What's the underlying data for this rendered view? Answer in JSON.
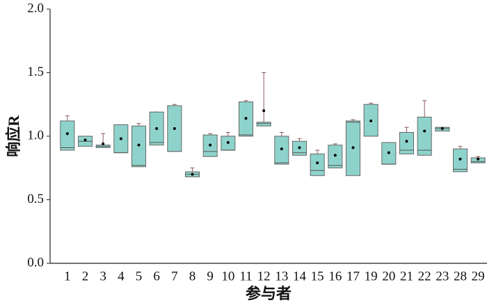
{
  "chart_data": {
    "type": "box",
    "xlabel": "参与者",
    "ylabel": "响应R",
    "categories": [
      "1",
      "2",
      "3",
      "4",
      "5",
      "6",
      "7",
      "8",
      "9",
      "10",
      "11",
      "12",
      "13",
      "14",
      "15",
      "16",
      "17",
      "19",
      "20",
      "21",
      "22",
      "23",
      "28",
      "29"
    ],
    "color": "#8ed3cb",
    "boxes": [
      {
        "min": 0.89,
        "q1": 0.89,
        "median": 0.91,
        "q3": 1.12,
        "max": 1.16,
        "mean": 1.02
      },
      {
        "min": 0.92,
        "q1": 0.92,
        "median": 0.96,
        "q3": 1.0,
        "max": 1.0,
        "mean": 0.97
      },
      {
        "min": 0.91,
        "q1": 0.91,
        "median": 0.92,
        "q3": 0.93,
        "max": 1.02,
        "mean": 0.94
      },
      {
        "min": 0.87,
        "q1": 0.87,
        "median": 0.87,
        "q3": 1.09,
        "max": 1.09,
        "mean": 0.98
      },
      {
        "min": 0.76,
        "q1": 0.76,
        "median": 0.77,
        "q3": 1.08,
        "max": 1.1,
        "mean": 0.93
      },
      {
        "min": 0.93,
        "q1": 0.93,
        "median": 0.95,
        "q3": 1.19,
        "max": 1.19,
        "mean": 1.06
      },
      {
        "min": 0.88,
        "q1": 0.88,
        "median": 0.88,
        "q3": 1.24,
        "max": 1.25,
        "mean": 1.06
      },
      {
        "min": 0.68,
        "q1": 0.68,
        "median": 0.7,
        "q3": 0.72,
        "max": 0.75,
        "mean": 0.7
      },
      {
        "min": 0.84,
        "q1": 0.84,
        "median": 0.88,
        "q3": 1.01,
        "max": 1.02,
        "mean": 0.93
      },
      {
        "min": 0.89,
        "q1": 0.89,
        "median": 0.89,
        "q3": 1.0,
        "max": 1.03,
        "mean": 0.95
      },
      {
        "min": 1.0,
        "q1": 1.0,
        "median": 1.01,
        "q3": 1.27,
        "max": 1.28,
        "mean": 1.14
      },
      {
        "min": 1.08,
        "q1": 1.08,
        "median": 1.1,
        "q3": 1.11,
        "max": 1.5,
        "mean": 1.2
      },
      {
        "min": 0.78,
        "q1": 0.78,
        "median": 0.79,
        "q3": 1.0,
        "max": 1.03,
        "mean": 0.9
      },
      {
        "min": 0.85,
        "q1": 0.85,
        "median": 0.87,
        "q3": 0.96,
        "max": 0.98,
        "mean": 0.91
      },
      {
        "min": 0.69,
        "q1": 0.69,
        "median": 0.73,
        "q3": 0.86,
        "max": 0.89,
        "mean": 0.79
      },
      {
        "min": 0.75,
        "q1": 0.75,
        "median": 0.77,
        "q3": 0.93,
        "max": 0.94,
        "mean": 0.85
      },
      {
        "min": 0.69,
        "q1": 0.69,
        "median": 1.11,
        "q3": 1.12,
        "max": 1.13,
        "mean": 0.91
      },
      {
        "min": 1.0,
        "q1": 1.0,
        "median": 1.0,
        "q3": 1.25,
        "max": 1.26,
        "mean": 1.12
      },
      {
        "min": 0.78,
        "q1": 0.78,
        "median": 0.78,
        "q3": 0.95,
        "max": 0.95,
        "mean": 0.87
      },
      {
        "min": 0.86,
        "q1": 0.86,
        "median": 0.89,
        "q3": 1.03,
        "max": 1.07,
        "mean": 0.96
      },
      {
        "min": 0.85,
        "q1": 0.85,
        "median": 0.89,
        "q3": 1.15,
        "max": 1.28,
        "mean": 1.04
      },
      {
        "min": 1.04,
        "q1": 1.04,
        "median": 1.06,
        "q3": 1.07,
        "max": 1.07,
        "mean": 1.06
      },
      {
        "min": 0.72,
        "q1": 0.72,
        "median": 0.74,
        "q3": 0.9,
        "max": 0.92,
        "mean": 0.82
      },
      {
        "min": 0.79,
        "q1": 0.79,
        "median": 0.8,
        "q3": 0.83,
        "max": 0.84,
        "mean": 0.82
      }
    ],
    "ylim": [
      0,
      2.0
    ],
    "yticks": [
      {
        "value": 0,
        "label": "0.0"
      },
      {
        "value": 0.5,
        "label": "0.5"
      },
      {
        "value": 1.0,
        "label": "1.0"
      },
      {
        "value": 1.5,
        "label": "1.5"
      },
      {
        "value": 2.0,
        "label": "2.0"
      }
    ]
  }
}
